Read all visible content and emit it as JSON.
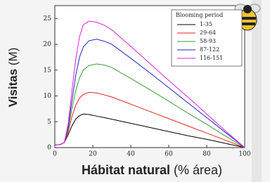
{
  "chart_data": {
    "type": "line",
    "y_label_bold": "Visitas",
    "y_label_rest": "(M)",
    "x_label_bold": "Hábitat natural",
    "x_label_rest": "(% área)",
    "legend_title": "Blooming period",
    "x": [
      0,
      3,
      5,
      7,
      9,
      11,
      13,
      15,
      18,
      22,
      26,
      30,
      40,
      50,
      60,
      70,
      80,
      90,
      100
    ],
    "series": [
      {
        "name": "1-35",
        "color": "#000000",
        "values": [
          0.5,
          0.6,
          1,
          2.5,
          4.2,
          5.5,
          6.2,
          6.5,
          6.4,
          6.1,
          5.8,
          5.5,
          4.7,
          3.9,
          3.1,
          2.3,
          1.6,
          0.8,
          0
        ]
      },
      {
        "name": "29-64",
        "color": "#e3261f",
        "values": [
          0.5,
          0.6,
          1,
          3,
          6,
          8.2,
          9.6,
          10.3,
          10.7,
          10.6,
          10.2,
          9.8,
          8.4,
          7,
          5.6,
          4.2,
          2.8,
          1.4,
          0
        ]
      },
      {
        "name": "58-93",
        "color": "#3a9a3a",
        "values": [
          0.5,
          0.6,
          1,
          3.5,
          7.5,
          11,
          13.5,
          15,
          15.9,
          16.2,
          16,
          15.5,
          13.4,
          11.2,
          9,
          6.7,
          4.5,
          2.2,
          0
        ]
      },
      {
        "name": "87-122",
        "color": "#2323c8",
        "values": [
          0.5,
          0.6,
          1,
          4,
          9,
          14,
          17.5,
          19.5,
          20.7,
          21,
          20.6,
          20,
          17.3,
          14.5,
          11.6,
          8.7,
          5.8,
          2.9,
          0
        ]
      },
      {
        "name": "116-151",
        "color": "#e020e0",
        "values": [
          0.5,
          0.6,
          1,
          4.5,
          11,
          17,
          21.5,
          23.8,
          24.5,
          24.3,
          23.7,
          22.8,
          19.6,
          16.3,
          13,
          9.8,
          6.5,
          3.2,
          0
        ]
      }
    ],
    "xlim": [
      0,
      100
    ],
    "xticks": [
      0,
      20,
      40,
      60,
      80,
      100
    ],
    "ylim": [
      0,
      27.5
    ],
    "yticks": [
      0,
      5,
      10,
      15,
      20,
      25
    ],
    "legend": "upper right"
  }
}
